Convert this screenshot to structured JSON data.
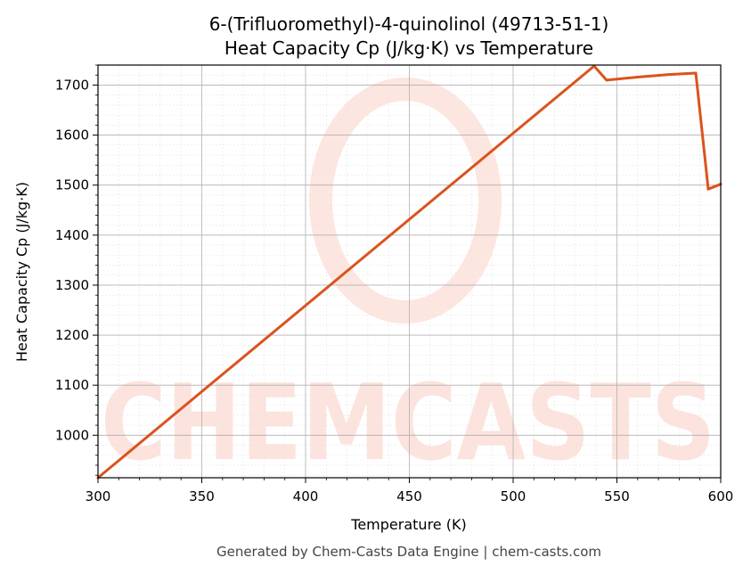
{
  "chart_data": {
    "type": "line",
    "title": "6-(Trifluoromethyl)-4-quinolinol (49713-51-1)",
    "subtitle": "Heat Capacity Cp (J/kg·K) vs Temperature",
    "xlabel": "Temperature (K)",
    "ylabel": "Heat Capacity Cp (J/kg·K)",
    "xlim": [
      300,
      600
    ],
    "ylim": [
      915,
      1740
    ],
    "xticks": [
      300,
      350,
      400,
      450,
      500,
      550,
      600
    ],
    "yticks": [
      1000,
      1100,
      1200,
      1300,
      1400,
      1500,
      1600,
      1700
    ],
    "grid": true,
    "x": [
      300,
      539,
      545,
      560,
      575,
      588,
      594,
      600
    ],
    "y": [
      915,
      1738,
      1710,
      1716,
      1721,
      1724,
      1492,
      1502
    ]
  },
  "colors": {
    "line": "#d9541e",
    "grid": "#b0b0b0",
    "watermark": "#fde3dd"
  },
  "watermark": {
    "text": "CHEMCASTS"
  },
  "footer": "Generated by Chem-Casts Data Engine | chem-casts.com"
}
